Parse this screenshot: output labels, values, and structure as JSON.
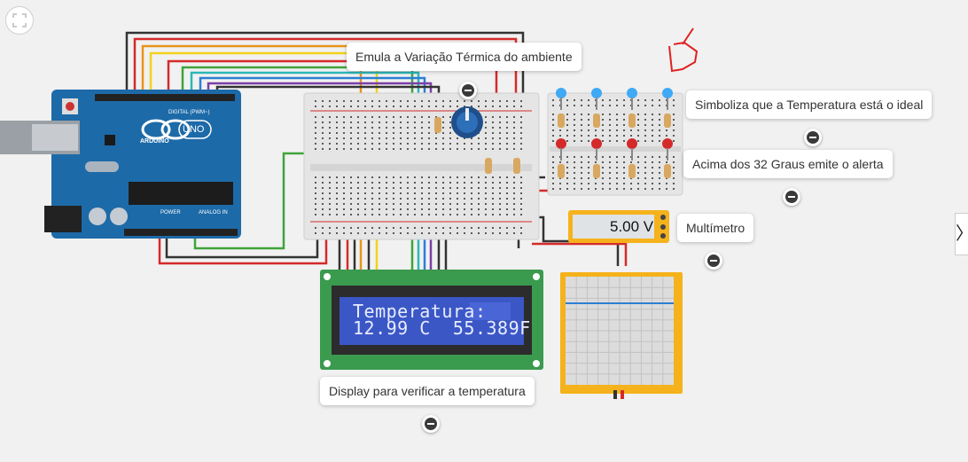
{
  "annotations": [
    {
      "id": "emula",
      "text": "Emula a Variação Térmica do ambiente"
    },
    {
      "id": "simboliza",
      "text": "Simboliza que a Temperatura está o ideal"
    },
    {
      "id": "acima",
      "text": "Acima dos 32 Graus emite o alerta"
    },
    {
      "id": "multimetro",
      "text": "Multímetro"
    },
    {
      "id": "display",
      "text": "Display para verificar a temperatura"
    }
  ],
  "lcd": {
    "line1": "Temperatura:",
    "line2": "12.99 C  55.389F"
  },
  "multimeter": {
    "reading": "5.00 V"
  },
  "arduino": {
    "brand": "ARDUINO",
    "model": "UNO",
    "digital_label": "DIGITAL (PWM~)",
    "power_label": "POWER",
    "analog_label": "ANALOG IN"
  },
  "toolbar": {
    "side_toggle": "〉"
  },
  "colors": {
    "background": "#f1f1f1",
    "arduino": "#1d6aa8",
    "lcd_board": "#3a9a4e",
    "lcd_screen": "#3b57c6",
    "scope": "#f5b21c",
    "led_blue": "#3fa9f5",
    "led_red": "#d42a2a"
  }
}
